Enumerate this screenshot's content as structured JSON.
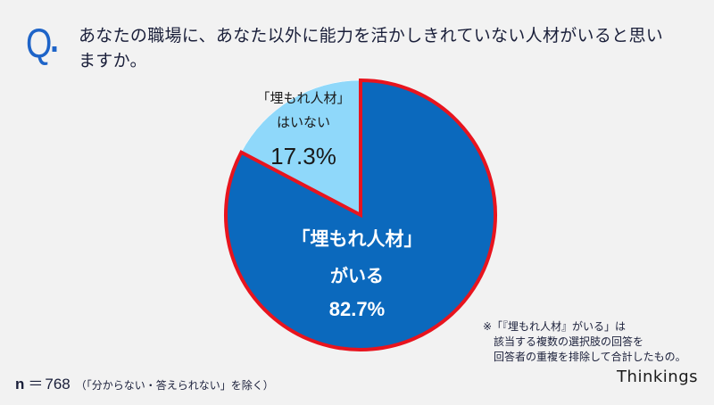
{
  "header": {
    "q_mark": "Q",
    "question": "あなたの職場に、あなた以外に能力を活かしきれていない人材がいると思いますか。"
  },
  "colors": {
    "accent": "#1e64c8",
    "slice_large": "#0b69bd",
    "slice_small": "#8fd8fa",
    "highlight_border": "#e8141e",
    "background": "#f2f2f2",
    "text": "#1a1f3a"
  },
  "chart_data": {
    "type": "pie",
    "title": "あなたの職場に、あなた以外に能力を活かしきれていない人材がいると思いますか。",
    "slices": [
      {
        "label": "「埋もれ人材」がいる",
        "label_line1": "「埋もれ人材」",
        "label_line2": "がいる",
        "value": 82.7,
        "value_label": "82.7%",
        "color": "#0b69bd",
        "highlighted": true
      },
      {
        "label": "「埋もれ人材」はいない",
        "label_line1": "「埋もれ人材」",
        "label_line2": "はいない",
        "value": 17.3,
        "value_label": "17.3%",
        "color": "#8fd8fa",
        "highlighted": false
      }
    ],
    "start_angle": "12 o'clock, small slice counter-clockwise",
    "legend": "none (labels inside slices)"
  },
  "note": {
    "line1": "※「『埋もれ人材』がいる」は",
    "line2": "該当する複数の選択肢の回答を",
    "line3": "回答者の重複を排除して合計したもの。"
  },
  "sample": {
    "n_label": "n",
    "equals": "＝",
    "count": "768",
    "exclusion": "（「分からない・答えられない」を除く）"
  },
  "brand": {
    "name": "Thinkings"
  }
}
